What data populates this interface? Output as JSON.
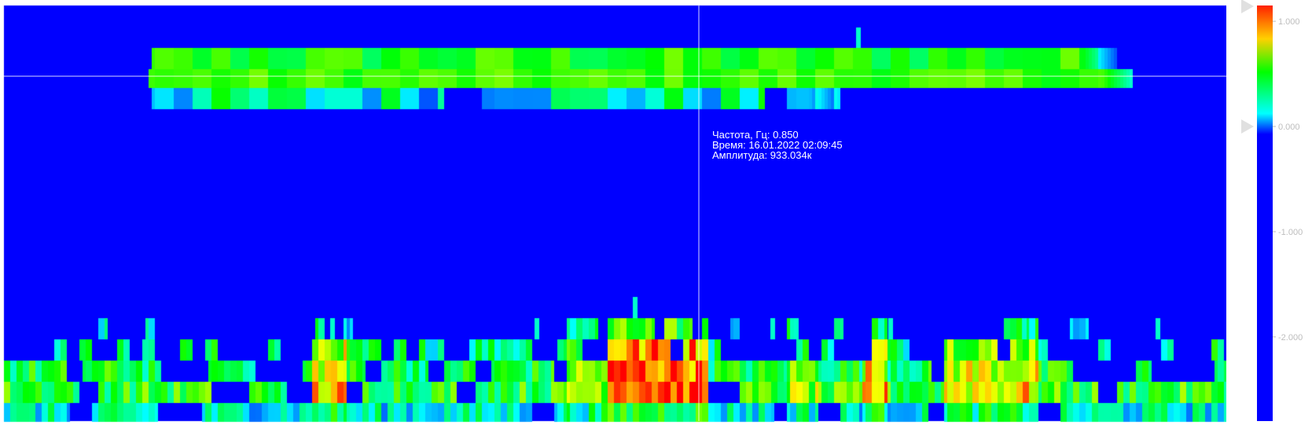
{
  "tooltip": {
    "frequency": "Частота, Гц: 0.850",
    "time": "Время: 16.01.2022 02:09:45",
    "amplitude": "Амплитуда: 933.034к"
  },
  "chart_data": {
    "type": "heatmap",
    "colormap": [
      "#0000ff",
      "#00ffff",
      "#00ff00",
      "#ffff00",
      "#ff0000"
    ],
    "background": "#0000ff",
    "colorbar": {
      "ticks": [
        {
          "value": 1.0,
          "label": "1.000"
        },
        {
          "value": 0.0,
          "label": "0.000"
        },
        {
          "value": -1.0,
          "label": "-1.000"
        },
        {
          "value": -2.0,
          "label": "-2.000"
        }
      ],
      "range": [
        -2.8,
        1.15
      ],
      "handles": [
        1.2,
        0.0
      ]
    },
    "cursor": {
      "frequency_hz": 0.85,
      "time": "16.01.2022 02:09:45",
      "amplitude": "933.034к"
    }
  }
}
